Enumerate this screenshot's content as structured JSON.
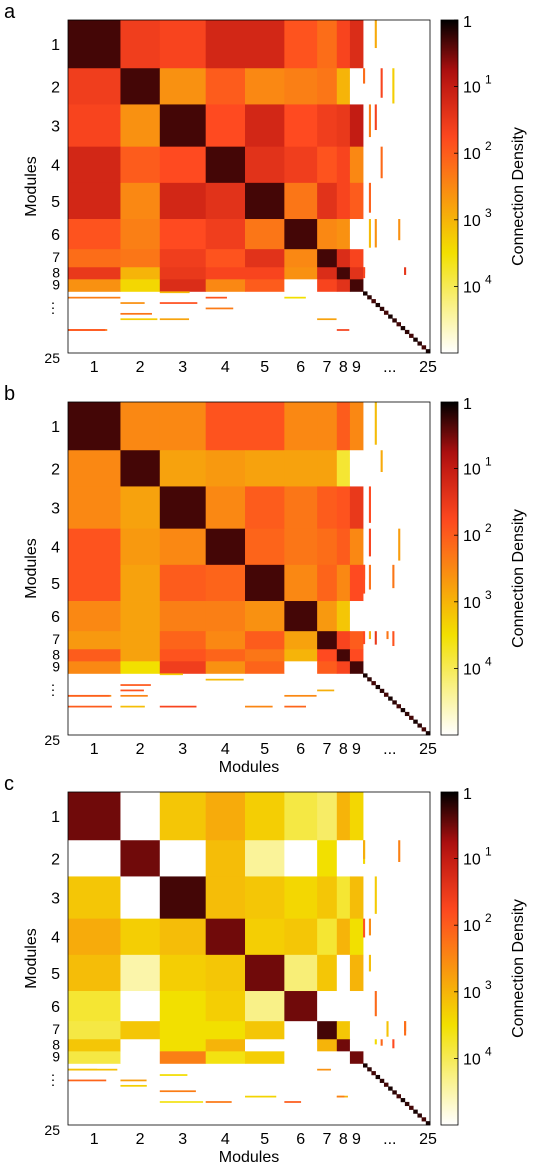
{
  "chart_data": [
    {
      "panel": "a",
      "type": "heatmap",
      "xlabel": "",
      "ylabel": "Modules",
      "row_tick_labels": [
        "1",
        "2",
        "3",
        "4",
        "5",
        "6",
        "7",
        "8",
        "9",
        "⋮",
        "25"
      ],
      "col_tick_labels": [
        "1",
        "2",
        "3",
        "4",
        "5",
        "6",
        "7",
        "8",
        "9",
        "...",
        "25"
      ],
      "module_sizes": [
        8,
        6,
        7,
        6,
        6,
        5,
        3,
        2,
        2
      ],
      "density_exponents": [
        [
          0.3,
          1.6,
          1.7,
          1.2,
          1.2,
          1.9,
          2.2,
          1.7,
          1.3
        ],
        [
          1.6,
          0.3,
          2.6,
          2.0,
          2.5,
          2.4,
          2.3,
          3.0,
          5.0
        ],
        [
          1.7,
          2.6,
          0.3,
          1.8,
          1.2,
          1.8,
          1.6,
          1.5,
          1.0
        ],
        [
          1.2,
          2.0,
          1.8,
          0.3,
          1.4,
          1.6,
          1.9,
          1.7,
          2.5
        ],
        [
          1.2,
          2.5,
          1.2,
          1.4,
          0.3,
          2.3,
          1.4,
          1.7,
          2.0
        ],
        [
          1.9,
          2.4,
          1.8,
          1.6,
          2.3,
          0.3,
          2.5,
          2.6,
          5.0
        ],
        [
          2.2,
          2.3,
          1.6,
          1.9,
          1.4,
          2.5,
          0.3,
          1.3,
          1.7
        ],
        [
          1.5,
          3.0,
          1.5,
          1.7,
          1.7,
          2.6,
          1.3,
          0.3,
          1.4
        ],
        [
          2.6,
          3.4,
          1.3,
          2.5,
          2.0,
          5.0,
          1.7,
          1.4,
          0.3
        ]
      ],
      "colorbar": {
        "label": "Connection Density",
        "tick_labels": [
          {
            "base": "1",
            "exp": ""
          },
          {
            "base": "10",
            "exp": "1"
          },
          {
            "base": "10",
            "exp": "2"
          },
          {
            "base": "10",
            "exp": "3"
          },
          {
            "base": "10",
            "exp": "4"
          }
        ]
      }
    },
    {
      "panel": "b",
      "type": "heatmap",
      "xlabel": "Modules",
      "ylabel": "Modules",
      "row_tick_labels": [
        "1",
        "2",
        "3",
        "4",
        "5",
        "6",
        "7",
        "8",
        "9",
        "⋮",
        "25"
      ],
      "col_tick_labels": [
        "1",
        "2",
        "3",
        "4",
        "5",
        "6",
        "7",
        "8",
        "9",
        "...",
        "25"
      ],
      "module_sizes": [
        8,
        6,
        7,
        6,
        6,
        5,
        3,
        2,
        2
      ],
      "density_exponents": [
        [
          0.3,
          2.5,
          2.5,
          1.9,
          1.9,
          2.5,
          2.5,
          2.0,
          2.5
        ],
        [
          2.5,
          0.3,
          2.8,
          2.7,
          2.8,
          2.8,
          2.8,
          3.8,
          5.0
        ],
        [
          2.5,
          2.8,
          0.3,
          2.5,
          2.0,
          2.3,
          2.0,
          1.9,
          1.5
        ],
        [
          1.9,
          2.7,
          2.5,
          0.3,
          2.1,
          2.3,
          2.2,
          2.0,
          2.5
        ],
        [
          1.9,
          2.8,
          2.0,
          2.1,
          0.3,
          2.5,
          2.1,
          2.5,
          1.8
        ],
        [
          2.5,
          2.8,
          2.4,
          2.4,
          2.6,
          0.3,
          2.7,
          3.2,
          5.0
        ],
        [
          2.7,
          2.8,
          2.1,
          2.5,
          2.0,
          2.8,
          0.3,
          1.7,
          2.0
        ],
        [
          2.0,
          2.8,
          1.9,
          2.1,
          2.3,
          3.0,
          1.8,
          0.3,
          1.8
        ],
        [
          2.5,
          3.5,
          1.6,
          2.6,
          2.1,
          5.0,
          2.0,
          1.7,
          0.3
        ]
      ],
      "colorbar": {
        "label": "Connection Density",
        "tick_labels": [
          {
            "base": "1",
            "exp": ""
          },
          {
            "base": "10",
            "exp": "1"
          },
          {
            "base": "10",
            "exp": "2"
          },
          {
            "base": "10",
            "exp": "3"
          },
          {
            "base": "10",
            "exp": "4"
          }
        ]
      }
    },
    {
      "panel": "c",
      "type": "heatmap",
      "xlabel": "Modules",
      "ylabel": "Modules",
      "row_tick_labels": [
        "1",
        "2",
        "3",
        "4",
        "5",
        "6",
        "7",
        "8",
        "9",
        "⋮",
        "25"
      ],
      "col_tick_labels": [
        "1",
        "2",
        "3",
        "4",
        "5",
        "6",
        "7",
        "8",
        "9",
        "...",
        "25"
      ],
      "module_sizes": [
        8,
        6,
        7,
        6,
        6,
        5,
        3,
        2,
        2
      ],
      "density_exponents": [
        [
          0.5,
          5.0,
          3.2,
          2.9,
          3.3,
          3.9,
          4.1,
          3.0,
          3.4
        ],
        [
          5.0,
          0.5,
          5.0,
          3.1,
          4.4,
          5.0,
          3.5,
          5.0,
          5.0
        ],
        [
          3.2,
          5.0,
          0.3,
          3.1,
          3.2,
          3.4,
          3.2,
          3.8,
          3.1
        ],
        [
          2.9,
          3.3,
          3.1,
          0.5,
          3.3,
          3.2,
          3.8,
          3.0,
          3.5
        ],
        [
          3.1,
          4.5,
          3.3,
          3.2,
          0.5,
          4.2,
          3.2,
          5.0,
          3.0
        ],
        [
          3.8,
          5.0,
          3.5,
          3.3,
          4.3,
          0.5,
          5.0,
          5.0,
          5.0
        ],
        [
          3.9,
          3.2,
          3.5,
          3.5,
          3.2,
          5.0,
          0.3,
          3.2,
          5.0
        ],
        [
          3.2,
          5.0,
          3.5,
          3.0,
          5.0,
          5.0,
          3.0,
          0.5,
          5.0
        ],
        [
          3.9,
          5.0,
          2.4,
          3.6,
          3.3,
          5.0,
          5.0,
          5.0,
          0.5
        ]
      ],
      "colorbar": {
        "label": "Connection Density",
        "tick_labels": [
          {
            "base": "1",
            "exp": ""
          },
          {
            "base": "10",
            "exp": "1"
          },
          {
            "base": "10",
            "exp": "2"
          },
          {
            "base": "10",
            "exp": "3"
          },
          {
            "base": "10",
            "exp": "4"
          }
        ]
      }
    }
  ],
  "colormap": [
    "#ffffff",
    "#f2e000",
    "#ff4a20",
    "#b41010",
    "#000000"
  ]
}
